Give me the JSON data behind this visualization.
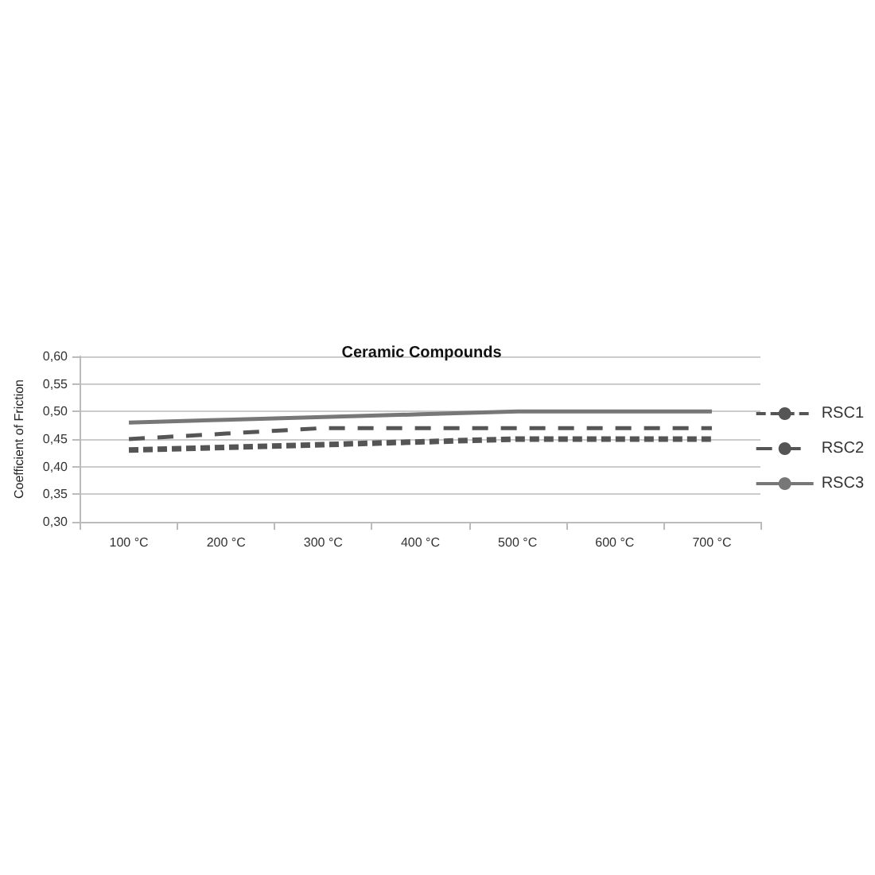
{
  "chart_data": {
    "type": "line",
    "title": "Ceramic Compounds",
    "ylabel": "Coefficient of Friction",
    "categories": [
      "100 °C",
      "200 °C",
      "300 °C",
      "400 °C",
      "500 °C",
      "600 °C",
      "700 °C"
    ],
    "series": [
      {
        "name": "RSC1",
        "color": "#555555",
        "line_style": "dotted",
        "values": [
          0.43,
          0.435,
          0.44,
          0.445,
          0.45,
          0.45,
          0.45
        ]
      },
      {
        "name": "RSC2",
        "color": "#555555",
        "line_style": "dashed",
        "values": [
          0.45,
          0.46,
          0.47,
          0.47,
          0.47,
          0.47,
          0.47
        ]
      },
      {
        "name": "RSC3",
        "color": "#777777",
        "line_style": "solid",
        "values": [
          0.48,
          0.485,
          0.49,
          0.495,
          0.5,
          0.5,
          0.5
        ]
      }
    ],
    "ylim": [
      0.3,
      0.6
    ],
    "yticks": [
      {
        "value": 0.3,
        "label": "0,30"
      },
      {
        "value": 0.35,
        "label": "0,35"
      },
      {
        "value": 0.4,
        "label": "0,40"
      },
      {
        "value": 0.45,
        "label": "0,45"
      },
      {
        "value": 0.5,
        "label": "0,50"
      },
      {
        "value": 0.55,
        "label": "0,55"
      },
      {
        "value": 0.6,
        "label": "0,60"
      }
    ],
    "grid": "y",
    "legend": "right",
    "marker": "none"
  }
}
